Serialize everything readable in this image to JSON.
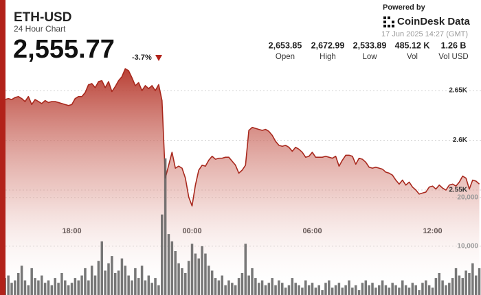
{
  "header": {
    "symbol": "ETH-USD",
    "subtitle": "24 Hour Chart",
    "price": "2,555.77",
    "change": "-3.7%",
    "powered_by": "Powered by",
    "brand": "CoinDesk Data",
    "timestamp": "17 Jun 2025 14:27 (GMT)"
  },
  "stats": [
    {
      "value": "2,653.85",
      "label": "Open"
    },
    {
      "value": "2,672.99",
      "label": "High"
    },
    {
      "value": "2,533.89",
      "label": "Low"
    },
    {
      "value": "485.12 K",
      "label": "Vol"
    },
    {
      "value": "1.26 B",
      "label": "Vol USD"
    }
  ],
  "chart_data": {
    "type": "line",
    "grid": true,
    "categories": [
      null,
      null,
      null,
      null,
      null,
      null,
      null,
      null,
      null,
      null,
      null,
      null,
      null,
      null,
      null,
      null,
      null,
      null,
      null,
      null,
      null,
      "18:00",
      null,
      null,
      null,
      null,
      null,
      null,
      null,
      null,
      null,
      null,
      null,
      null,
      null,
      null,
      null,
      null,
      null,
      null,
      null,
      null,
      null,
      null,
      null,
      null,
      null,
      null,
      null,
      null,
      null,
      null,
      null,
      null,
      null,
      null,
      null,
      "00:00",
      null,
      null,
      null,
      null,
      null,
      null,
      null,
      null,
      null,
      null,
      null,
      null,
      null,
      null,
      null,
      null,
      null,
      null,
      null,
      null,
      null,
      null,
      null,
      null,
      null,
      null,
      null,
      null,
      null,
      null,
      null,
      null,
      null,
      null,
      null,
      "06:00",
      null,
      null,
      null,
      null,
      null,
      null,
      null,
      null,
      null,
      null,
      null,
      null,
      null,
      null,
      null,
      null,
      null,
      null,
      null,
      null,
      null,
      null,
      null,
      null,
      null,
      null,
      null,
      null,
      null,
      null,
      null,
      null,
      null,
      null,
      null,
      "12:00",
      null,
      null,
      null,
      null,
      null,
      null,
      null,
      null,
      null,
      null,
      null,
      null,
      null,
      null
    ],
    "ylim": [
      2444.5,
      2665.2
    ],
    "yticks": [
      {
        "value": 2550,
        "label": "2.55K"
      },
      {
        "value": 2600,
        "label": "2.6K"
      },
      {
        "value": 2650,
        "label": "2.65K"
      }
    ],
    "y2lim": [
      0,
      45000
    ],
    "y2ticks": [
      {
        "value": 10000,
        "label": "10,000"
      },
      {
        "value": 20000,
        "label": "20,000"
      }
    ],
    "series": [
      {
        "type": "area",
        "color": "#a8281d",
        "values": [
          2643,
          2641,
          2642,
          2641,
          2643,
          2644,
          2642,
          2639,
          2644,
          2636,
          2641,
          2639,
          2637,
          2640,
          2638,
          2639,
          2639,
          2638,
          2637,
          2636,
          2635,
          2636,
          2642,
          2644,
          2644,
          2648,
          2656,
          2657,
          2653,
          2659,
          2660,
          2653,
          2659,
          2649,
          2654,
          2660,
          2664,
          2672,
          2670,
          2663,
          2655,
          2658,
          2650,
          2655,
          2652,
          2655,
          2650,
          2656,
          2640,
          2562,
          2575,
          2588,
          2572,
          2574,
          2572,
          2562,
          2543,
          2534,
          2555,
          2570,
          2575,
          2574,
          2580,
          2584,
          2581,
          2582,
          2582,
          2583,
          2583,
          2579,
          2575,
          2567,
          2570,
          2575,
          2610,
          2613,
          2612,
          2611,
          2610,
          2611,
          2609,
          2605,
          2599,
          2595,
          2594,
          2595,
          2593,
          2589,
          2593,
          2591,
          2588,
          2583,
          2584,
          2588,
          2583,
          2583,
          2583,
          2584,
          2583,
          2582,
          2584,
          2574,
          2580,
          2585,
          2585,
          2584,
          2576,
          2582,
          2581,
          2578,
          2573,
          2572,
          2573,
          2572,
          2571,
          2568,
          2567,
          2565,
          2560,
          2556,
          2560,
          2555,
          2558,
          2553,
          2550,
          2546,
          2547,
          2548,
          2553,
          2554,
          2551,
          2555,
          2552,
          2550,
          2555,
          2556,
          2554,
          2558,
          2564,
          2562,
          2551,
          2560,
          2559,
          2556
        ]
      },
      {
        "type": "bar",
        "axis": "y2",
        "color": "#5f5f5f",
        "values": [
          5000,
          3500,
          4000,
          2500,
          3000,
          4500,
          6000,
          3000,
          2000,
          5500,
          3500,
          3000,
          4000,
          2500,
          3000,
          2000,
          3500,
          2500,
          4500,
          3000,
          2000,
          2500,
          3500,
          3000,
          4000,
          5500,
          3000,
          6000,
          4000,
          7000,
          11000,
          5000,
          6500,
          8000,
          4500,
          5000,
          7500,
          6000,
          4000,
          3000,
          5500,
          3500,
          6000,
          3000,
          4000,
          2500,
          3500,
          2000,
          16500,
          28000,
          12500,
          11000,
          9000,
          6500,
          5500,
          4500,
          7000,
          10500,
          8500,
          7500,
          10000,
          8500,
          6000,
          5000,
          3500,
          3000,
          4000,
          2000,
          3000,
          2500,
          2000,
          3500,
          4500,
          10500,
          4000,
          5500,
          3500,
          2500,
          3000,
          2000,
          2500,
          3500,
          2000,
          3000,
          2500,
          1500,
          2000,
          3500,
          2500,
          2000,
          1500,
          3000,
          2000,
          2500,
          1500,
          2000,
          1000,
          2500,
          3000,
          1500,
          2000,
          2500,
          1500,
          2000,
          3000,
          1500,
          2000,
          1000,
          2500,
          3000,
          2000,
          2500,
          1500,
          2000,
          3000,
          2000,
          1500,
          2500,
          2000,
          1500,
          3000,
          2000,
          1500,
          2500,
          2000,
          1000,
          2500,
          3000,
          2000,
          1500,
          3500,
          4500,
          3000,
          2000,
          2500,
          3500,
          5500,
          4000,
          3500,
          5000,
          4500,
          6500,
          4000,
          5500
        ]
      }
    ]
  }
}
